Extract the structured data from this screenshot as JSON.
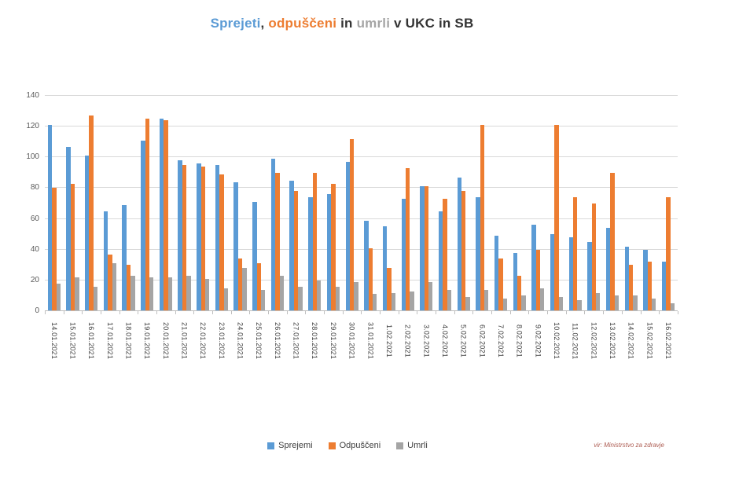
{
  "title": {
    "full": "Sprejeti, odpuščeni in umrli v UKC in SB",
    "parts": [
      {
        "text": "Sprejeti",
        "color": "#5b9bd5"
      },
      {
        "text": ", ",
        "color": "#333333"
      },
      {
        "text": "odpuščeni",
        "color": "#ed7d31"
      },
      {
        "text": " in ",
        "color": "#333333"
      },
      {
        "text": "umrli",
        "color": "#a5a5a5"
      },
      {
        "text": " v UKC in SB",
        "color": "#333333"
      }
    ]
  },
  "source_note": "vir: Ministrstvo za zdravje",
  "chart_data": {
    "type": "bar",
    "title": "Sprejeti, odpuščeni in umrli v UKC in SB",
    "xlabel": "",
    "ylabel": "",
    "ylim": [
      0,
      140
    ],
    "yticks": [
      0,
      20,
      40,
      60,
      80,
      100,
      120,
      140
    ],
    "grid": true,
    "legend_position": "bottom",
    "categories": [
      "14.01.2021",
      "15.01.2021",
      "16.01.2021",
      "17.01.2021",
      "18.01.2021",
      "19.01.2021",
      "20.01.2021",
      "21.01.2021",
      "22.01.2021",
      "23.01.2021",
      "24.01.2021",
      "25.01.2021",
      "26.01.2021",
      "27.01.2021",
      "28.01.2021",
      "29.01.2021",
      "30.01.2021",
      "31.01.2021",
      "1.02.2021",
      "2.02.2021",
      "3.02.2021",
      "4.02.2021",
      "5.02.2021",
      "6.02.2021",
      "7.02.2021",
      "8.02.2021",
      "9.02.2021",
      "10.02.2021",
      "11.02.2021",
      "12.02.2021",
      "13.02.2021",
      "14.02.2021",
      "15.02.2021",
      "16.02.2021"
    ],
    "series": [
      {
        "name": "Sprejemi",
        "color": "#5b9bd5",
        "values": [
          121,
          107,
          101,
          65,
          69,
          111,
          125,
          98,
          96,
          95,
          84,
          71,
          99,
          85,
          74,
          76,
          97,
          59,
          55,
          73,
          81,
          65,
          87,
          74,
          49,
          38,
          56,
          50,
          48,
          45,
          54,
          42,
          40,
          32
        ]
      },
      {
        "name": "Odpuščeni",
        "color": "#ed7d31",
        "values": [
          80,
          83,
          127,
          37,
          30,
          125,
          124,
          95,
          94,
          89,
          34,
          31,
          90,
          78,
          90,
          83,
          112,
          41,
          28,
          93,
          81,
          73,
          78,
          121,
          34,
          23,
          40,
          121,
          74,
          70,
          90,
          30,
          32,
          74
        ]
      },
      {
        "name": "Umrli",
        "color": "#a5a5a5",
        "values": [
          18,
          22,
          16,
          31,
          23,
          22,
          22,
          23,
          21,
          15,
          28,
          14,
          23,
          16,
          20,
          16,
          19,
          11,
          12,
          13,
          19,
          14,
          9,
          14,
          8,
          10,
          15,
          9,
          7,
          12,
          10,
          10,
          8,
          5
        ]
      }
    ]
  }
}
